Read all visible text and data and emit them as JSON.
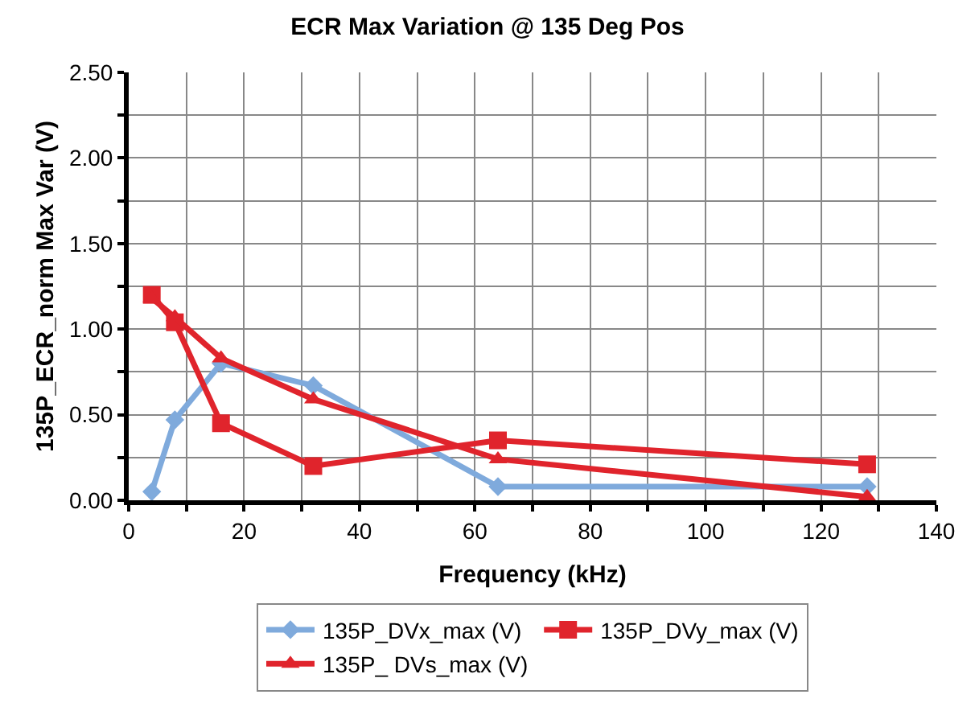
{
  "chart_data": {
    "type": "line",
    "title": "ECR Max Variation @ 135 Deg Pos",
    "xlabel": "Frequency (kHz)",
    "ylabel": "135P_ECR_norm Max Var (V)",
    "x": [
      4,
      8,
      16,
      32,
      64,
      128
    ],
    "series": [
      {
        "name": "135P_DVx_max (V)",
        "color": "#7faadc",
        "marker": "diamond",
        "values": [
          0.05,
          0.47,
          0.8,
          0.67,
          0.08,
          0.08
        ]
      },
      {
        "name": "135P_DVy_max (V)",
        "color": "#e0242c",
        "marker": "square",
        "values": [
          1.2,
          1.04,
          0.45,
          0.2,
          0.35,
          0.21
        ]
      },
      {
        "name": "135P_ DVs_max (V)",
        "color": "#e0242c",
        "marker": "triangle",
        "values": [
          1.18,
          1.07,
          0.83,
          0.59,
          0.24,
          0.02
        ]
      }
    ],
    "xlim": [
      0,
      140
    ],
    "xticks": [
      0,
      {
        "value": 10,
        "label": null
      },
      20,
      {
        "value": 30,
        "label": null
      },
      40,
      {
        "value": 50,
        "label": null
      },
      60,
      {
        "value": 70,
        "label": null
      },
      80,
      {
        "value": 90,
        "label": null
      },
      100,
      {
        "value": 110,
        "label": null
      },
      120,
      {
        "value": 130,
        "label": null
      },
      140
    ],
    "ylim": [
      0,
      2.5
    ],
    "yticks": [
      {
        "value": 0,
        "label": "0.00"
      },
      {
        "value": 0.25,
        "label": null
      },
      {
        "value": 0.5,
        "label": "0.50"
      },
      {
        "value": 0.75,
        "label": null
      },
      {
        "value": 1,
        "label": "1.00"
      },
      {
        "value": 1.25,
        "label": null
      },
      {
        "value": 1.5,
        "label": "1.50"
      },
      {
        "value": 1.75,
        "label": null
      },
      {
        "value": 2,
        "label": "2.00"
      },
      {
        "value": 2.25,
        "label": null
      },
      {
        "value": 2.5,
        "label": "2.50"
      }
    ],
    "grid": true,
    "legend": "bottom",
    "line_style": "solid"
  }
}
